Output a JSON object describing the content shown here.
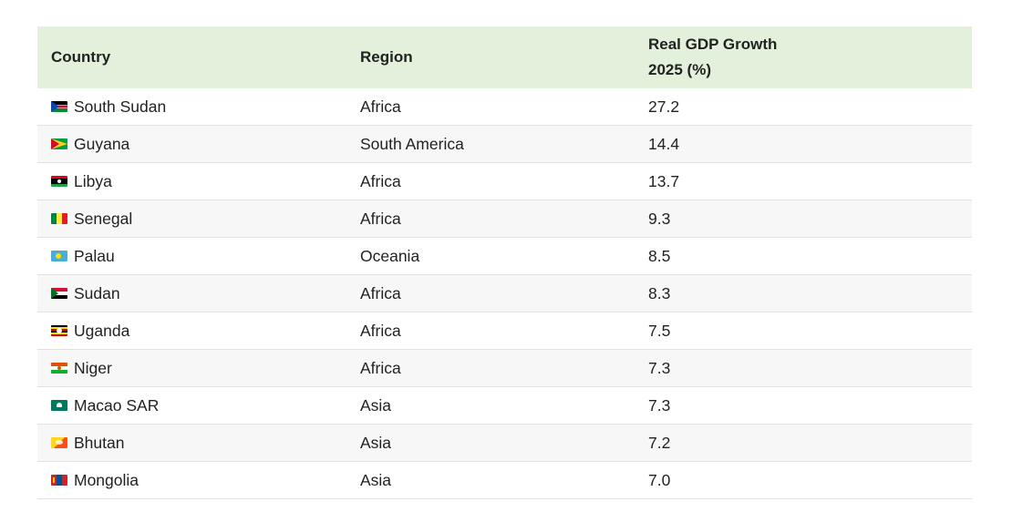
{
  "table": {
    "headers": {
      "country": "Country",
      "region": "Region",
      "growth_line1": "Real GDP Growth",
      "growth_line2": "2025 (%)"
    },
    "rows": [
      {
        "country": "South Sudan",
        "region": "Africa",
        "growth": "27.2",
        "flag_icon": "south-sudan-flag-icon"
      },
      {
        "country": "Guyana",
        "region": "South America",
        "growth": "14.4",
        "flag_icon": "guyana-flag-icon"
      },
      {
        "country": "Libya",
        "region": "Africa",
        "growth": "13.7",
        "flag_icon": "libya-flag-icon"
      },
      {
        "country": "Senegal",
        "region": "Africa",
        "growth": "9.3",
        "flag_icon": "senegal-flag-icon"
      },
      {
        "country": "Palau",
        "region": "Oceania",
        "growth": "8.5",
        "flag_icon": "palau-flag-icon"
      },
      {
        "country": "Sudan",
        "region": "Africa",
        "growth": "8.3",
        "flag_icon": "sudan-flag-icon"
      },
      {
        "country": "Uganda",
        "region": "Africa",
        "growth": "7.5",
        "flag_icon": "uganda-flag-icon"
      },
      {
        "country": "Niger",
        "region": "Africa",
        "growth": "7.3",
        "flag_icon": "niger-flag-icon"
      },
      {
        "country": "Macao SAR",
        "region": "Asia",
        "growth": "7.3",
        "flag_icon": "macao-flag-icon"
      },
      {
        "country": "Bhutan",
        "region": "Asia",
        "growth": "7.2",
        "flag_icon": "bhutan-flag-icon"
      },
      {
        "country": "Mongolia",
        "region": "Asia",
        "growth": "7.0",
        "flag_icon": "mongolia-flag-icon"
      }
    ]
  },
  "colors": {
    "header_background": "#e3f0dc",
    "stripe_background": "#f7f7f7",
    "row_border": "#e2e2e2"
  }
}
